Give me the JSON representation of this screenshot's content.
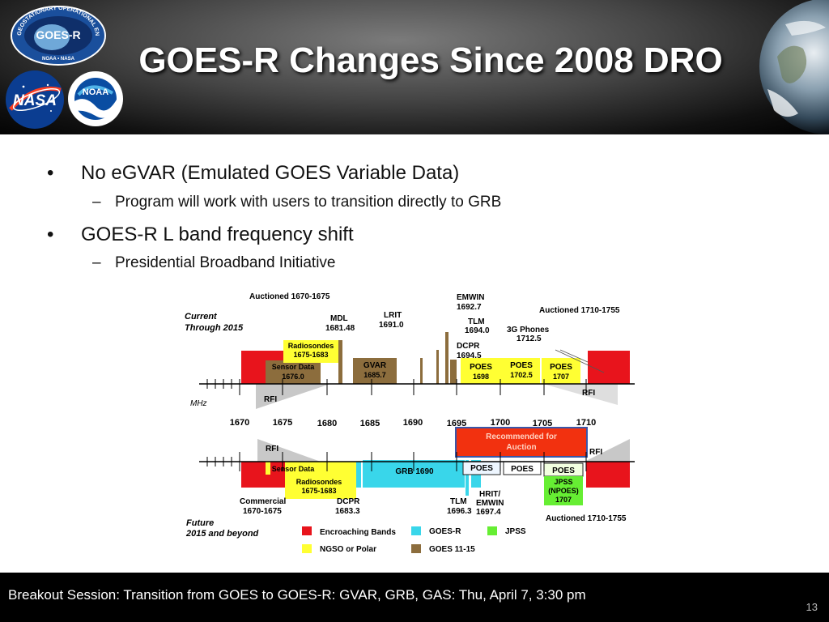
{
  "slide": {
    "title": "GOES-R Changes Since 2008 DRO",
    "page_number": "13"
  },
  "logos": {
    "goes_ring_text": "GEOSTATIONARY OPERATIONAL ENVIRONMENTAL SATELLITE",
    "goes_center": "GOES-R",
    "goes_bottom": "NOAA • NASA",
    "nasa": "NASA",
    "noaa": "NOAA"
  },
  "bullets": [
    {
      "text": "No eGVAR (Emulated GOES Variable Data)",
      "sub": [
        "Program will work with users to transition directly to GRB"
      ]
    },
    {
      "text": "GOES-R L band frequency shift",
      "sub": [
        "Presidential Broadband Initiative"
      ]
    }
  ],
  "footer": {
    "text": "Breakout Session:  Transition from GOES to GOES-R: GVAR, GRB, GAS:  Thu, April 7, 3:30 pm"
  },
  "diagram": {
    "current_label": [
      "Current",
      "Through 2015"
    ],
    "future_label": [
      "Future",
      "2015 and beyond"
    ],
    "unit": "MHz",
    "freq_labels": [
      "1670",
      "1675",
      "1680",
      "1685",
      "1690",
      "1695",
      "1700",
      "1705",
      "1710"
    ],
    "top": {
      "auctioned_1670": "Auctioned 1670-1675",
      "auctioned_1710": "Auctioned 1710-1755",
      "mdl": [
        "MDL",
        "1681.48"
      ],
      "lrit": [
        "LRIT",
        "1691.0"
      ],
      "emwin": [
        "EMWIN",
        "1692.7"
      ],
      "tlm": [
        "TLM",
        "1694.0"
      ],
      "dcpr": [
        "DCPR",
        "1694.5"
      ],
      "phones": [
        "3G Phones",
        "1712.5"
      ],
      "radiosondes": [
        "Radiosondes",
        "1675-1683"
      ],
      "sensor": [
        "Sensor Data",
        "1676.0"
      ],
      "gvar": [
        "GVAR",
        "1685.7"
      ],
      "poes1": [
        "POES",
        "1698"
      ],
      "poes2": [
        "POES",
        "1702.5"
      ],
      "poes3": [
        "POES",
        "1707"
      ],
      "rfi_left": "RFI",
      "rfi_right": "RFI"
    },
    "recommended": [
      "Recommended for",
      "Auction"
    ],
    "bottom": {
      "rfi_left": "RFI",
      "rfi_right": "RFI",
      "sensor": "Sensor Data",
      "radiosondes": [
        "Radiosondes",
        "1675-1683"
      ],
      "grb": "GRB 1690",
      "poes1": "POES",
      "poes2": "POES",
      "poes3": "POES",
      "jpss": [
        "JPSS",
        "(NPOES)",
        "1707"
      ],
      "commercial": [
        "Commercial",
        "1670-1675"
      ],
      "dcpr": [
        "DCPR",
        "1683.3"
      ],
      "tlm": [
        "TLM",
        "1696.3"
      ],
      "hrit": [
        "HRIT/",
        "EMWIN",
        "1697.4"
      ],
      "auctioned_1710": "Auctioned 1710-1755"
    },
    "legend": [
      {
        "label": "Encroaching Bands",
        "color": "#e8141c"
      },
      {
        "label": "GOES-R",
        "color": "#39d6ea"
      },
      {
        "label": "JPSS",
        "color": "#66ee33"
      },
      {
        "label": "NGSO or Polar",
        "color": "#ffff33"
      },
      {
        "label": "GOES 11-15",
        "color": "#8c6d3d"
      }
    ]
  },
  "colors": {
    "encroaching": "#e8141c",
    "goes_r": "#39d6ea",
    "jpss": "#66ee33",
    "ngso": "#ffff33",
    "goes11_15": "#8c6d3d",
    "recommended": "#f2310f"
  }
}
